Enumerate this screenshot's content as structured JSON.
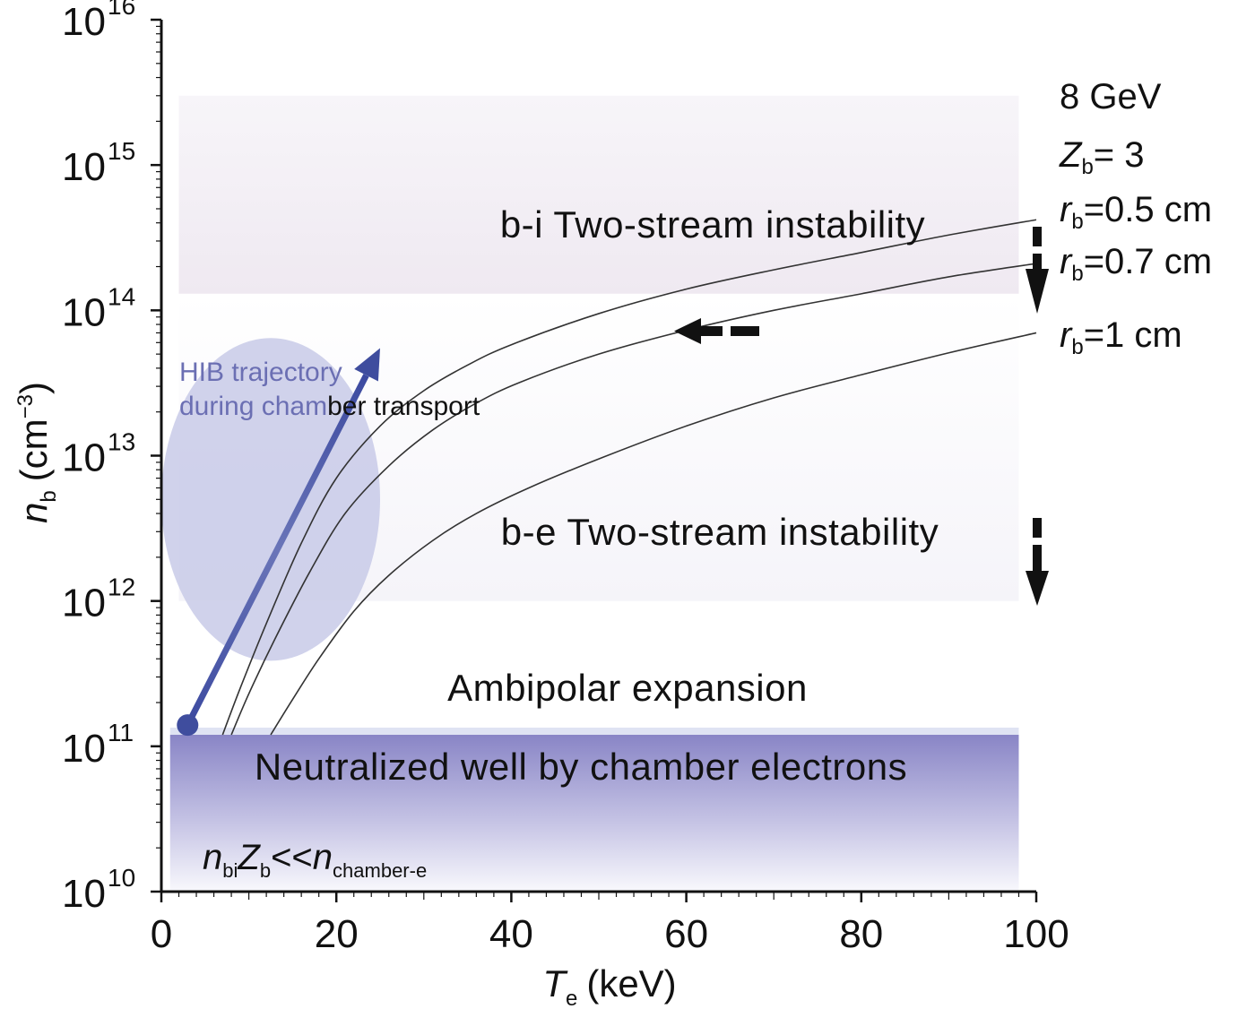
{
  "chart_data": {
    "type": "line",
    "xlabel": {
      "symbol": "T",
      "sub": "e",
      "unit": "(keV)"
    },
    "ylabel": {
      "symbol": "n",
      "sub": "b",
      "unit_pre": "(cm",
      "unit_sup": "−3",
      "unit_post": ")"
    },
    "xlim": [
      0,
      100
    ],
    "ylim": [
      10000000000.0,
      1e+16
    ],
    "yscale": "log",
    "grid": false,
    "xticks": [
      "0",
      "20",
      "40",
      "60",
      "80",
      "100"
    ],
    "yticks": [
      {
        "base": "10",
        "exp": "10"
      },
      {
        "base": "10",
        "exp": "11"
      },
      {
        "base": "10",
        "exp": "12"
      },
      {
        "base": "10",
        "exp": "13"
      },
      {
        "base": "10",
        "exp": "14"
      },
      {
        "base": "10",
        "exp": "15"
      },
      {
        "base": "10",
        "exp": "16"
      }
    ],
    "series": [
      {
        "x": [
          7,
          9,
          12,
          16,
          20,
          25,
          30,
          35,
          40,
          50,
          60,
          70,
          80,
          90,
          100
        ],
        "y": [
          120000000000.0,
          250000000000.0,
          700000000000.0,
          2500000000000.0,
          7000000000000.0,
          16000000000000.0,
          28000000000000.0,
          42000000000000.0,
          58000000000000.0,
          95000000000000.0,
          140000000000000.0,
          190000000000000.0,
          250000000000000.0,
          330000000000000.0,
          420000000000000.0
        ]
      },
      {
        "x": [
          8,
          10,
          13,
          17,
          21,
          26,
          31,
          36,
          41,
          50,
          60,
          70,
          80,
          90,
          100
        ],
        "y": [
          120000000000.0,
          230000000000.0,
          550000000000.0,
          1600000000000.0,
          4000000000000.0,
          8500000000000.0,
          15000000000000.0,
          23000000000000.0,
          32000000000000.0,
          50000000000000.0,
          73000000000000.0,
          100000000000000.0,
          130000000000000.0,
          170000000000000.0,
          210000000000000.0
        ]
      },
      {
        "x": [
          12.5,
          15,
          18,
          22,
          26,
          31,
          36,
          42,
          50,
          60,
          70,
          80,
          90,
          100
        ],
        "y": [
          120000000000.0,
          210000000000.0,
          400000000000.0,
          850000000000.0,
          1500000000000.0,
          2600000000000.0,
          4000000000000.0,
          6000000000000.0,
          9500000000000.0,
          16000000000000.0,
          25000000000000.0,
          36000000000000.0,
          51000000000000.0,
          70000000000000.0
        ]
      }
    ],
    "hib_trajectory": {
      "x": [
        3,
        25
      ],
      "y": [
        140000000000.0,
        55000000000000.0
      ]
    },
    "regions": [
      {
        "name": "b-i",
        "label": "b-i Two-stream instability",
        "y_range": [
          130000000000000.0,
          3000000000000000.0
        ]
      },
      {
        "name": "b-e",
        "label": "b-e Two-stream instability",
        "y_range": [
          1000000000000.0,
          130000000000000.0
        ]
      },
      {
        "name": "ambipolar",
        "label": "Ambipolar expansion",
        "y_range": [
          120000000000.0,
          1000000000000.0
        ]
      },
      {
        "name": "neutralized",
        "label": "Neutralized well by chamber electrons",
        "y_range": [
          10000000000.0,
          120000000000.0
        ]
      }
    ],
    "annotations": {
      "energy": "8 GeV",
      "zb": {
        "sym": "Z",
        "sub": "b",
        "text": "= 3"
      },
      "curve_labels": [
        {
          "sym": "r",
          "sub": "b",
          "text": "=0.5 cm"
        },
        {
          "sym": "r",
          "sub": "b",
          "text": "=0.7 cm"
        },
        {
          "sym": "r",
          "sub": "b",
          "text": "=1 cm"
        }
      ],
      "hib_line1": "HIB trajectory",
      "hib_line2_a": "during cham",
      "hib_line2_b": "ber transport",
      "condition": {
        "n": "n",
        "n_sub": "bi",
        "z": "Z",
        "z_sub": "b",
        "op": "<<",
        "n2": "n",
        "n2_sub": "chamber-e"
      }
    },
    "colors": {
      "axis": "#111111",
      "curve": "#333333",
      "trajectory": "#3f4d9e",
      "ellipse": "#c9cbe9",
      "bi_band": "#f4f1f6",
      "neutral_top": "#8a86c8"
    }
  }
}
